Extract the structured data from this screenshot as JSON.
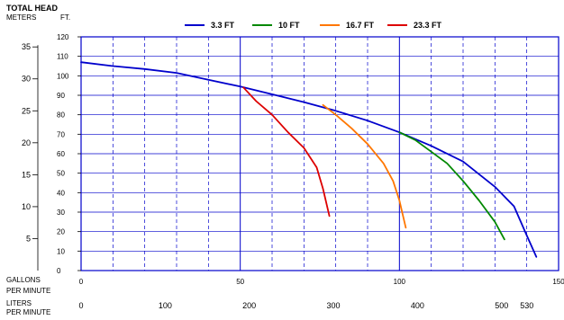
{
  "chart_data": {
    "type": "line",
    "title": "TOTAL HEAD",
    "header_units": {
      "meters": "METERS",
      "feet": "FT."
    },
    "y_ft": {
      "min": 0,
      "max": 120,
      "ticks": [
        0,
        10,
        20,
        30,
        40,
        50,
        60,
        70,
        80,
        90,
        100,
        110,
        120
      ]
    },
    "y_m": {
      "ticks": [
        5,
        10,
        15,
        20,
        25,
        30,
        35
      ]
    },
    "x_gpm": {
      "label_line1": "GALLONS",
      "label_line2": "PER MINUTE",
      "min": 0,
      "max": 150,
      "major_ticks": [
        0,
        50,
        100,
        150
      ],
      "grid": [
        10,
        20,
        30,
        40,
        50,
        60,
        70,
        80,
        90,
        100,
        110,
        120,
        130,
        140
      ]
    },
    "x_lpm": {
      "label_line1": "LITERS",
      "label_line2": "PER MINUTE",
      "ticks": [
        0,
        100,
        200,
        300,
        400,
        500,
        530
      ]
    },
    "grid": true,
    "legend_position": "top",
    "series": [
      {
        "name": "3.3 FT",
        "color": "#0000cc",
        "x": [
          0,
          10,
          20,
          30,
          40,
          50,
          60,
          70,
          80,
          90,
          100,
          110,
          120,
          130,
          136,
          140,
          143
        ],
        "y": [
          107,
          105,
          103.5,
          101.5,
          98,
          94.5,
          90.5,
          86.5,
          82,
          77,
          71,
          64,
          56,
          43,
          33,
          18,
          7
        ]
      },
      {
        "name": "10 FT",
        "color": "#008800",
        "x": [
          100,
          105,
          110,
          115,
          120,
          125,
          130,
          133
        ],
        "y": [
          71,
          67,
          61,
          55,
          46,
          36,
          25,
          16
        ]
      },
      {
        "name": "16.7 FT",
        "color": "#ff7700",
        "x": [
          76,
          80,
          85,
          90,
          95,
          98,
          100,
          102
        ],
        "y": [
          85,
          80,
          73,
          65,
          55,
          46,
          36,
          22
        ]
      },
      {
        "name": "23.3 FT",
        "color": "#dd0000",
        "x": [
          51,
          55,
          60,
          65,
          70,
          74,
          76,
          78
        ],
        "y": [
          94,
          87,
          80,
          71,
          63,
          53,
          42,
          28
        ]
      }
    ]
  }
}
